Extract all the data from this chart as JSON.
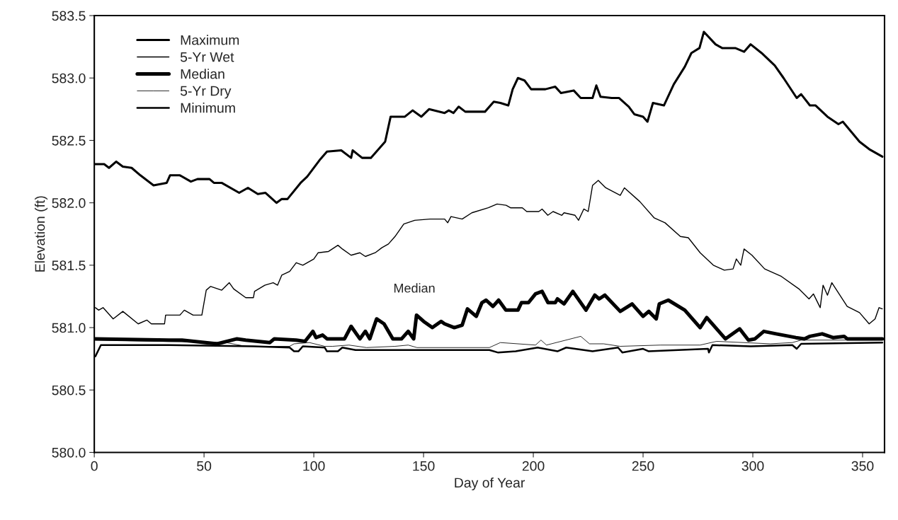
{
  "chart_data": {
    "type": "line",
    "xlabel": "Day of Year",
    "ylabel": "Elevation (ft)",
    "xlim": [
      0,
      360
    ],
    "xticks": [
      0,
      50,
      100,
      150,
      200,
      250,
      300,
      350
    ],
    "ylim": [
      580,
      583.5
    ],
    "yticks": [
      {
        "value": 580,
        "label": "580.0"
      },
      {
        "value": 580.5,
        "label": "580.5"
      },
      {
        "value": 581,
        "label": "581.0"
      },
      {
        "value": 581.5,
        "label": "581.5"
      },
      {
        "value": 582,
        "label": "582.0"
      },
      {
        "value": 582.5,
        "label": "582.5"
      },
      {
        "value": 583,
        "label": "583.0"
      },
      {
        "value": 583.5,
        "label": "583.5"
      }
    ],
    "grid": false,
    "legend": "top left",
    "line_style": "solid",
    "marker": "none",
    "annotations": [
      "Median"
    ],
    "series": [
      {
        "name": "Maximum",
        "color": "#000000",
        "x": [
          0,
          4.5,
          6.7,
          10,
          13,
          17,
          21,
          27,
          30,
          33,
          34.5,
          39,
          44,
          47,
          52.5,
          54.5,
          58,
          66,
          70,
          74.5,
          78,
          83,
          85.4,
          88,
          94,
          97,
          103,
          106,
          112.5,
          117,
          117.7,
          122,
          126,
          132.5,
          135,
          141.5,
          145,
          149,
          152.5,
          159.6,
          161.5,
          163.6,
          166,
          169,
          178,
          182,
          185,
          188.6,
          190.6,
          193,
          196,
          199,
          205.5,
          210,
          212.6,
          218.4,
          221.6,
          227,
          228.7,
          230.6,
          235.7,
          239,
          243.5,
          246,
          250,
          252,
          254.5,
          259.5,
          264,
          269,
          272,
          275.7,
          277.7,
          283,
          286,
          292,
          296,
          299,
          304,
          310,
          314,
          320,
          322,
          326,
          328.6,
          334,
          339,
          341,
          348.6,
          353,
          358,
          359
        ],
        "values": [
          582.31,
          582.31,
          582.28,
          582.33,
          582.29,
          582.28,
          582.22,
          582.14,
          582.15,
          582.16,
          582.22,
          582.22,
          582.17,
          582.19,
          582.19,
          582.16,
          582.16,
          582.08,
          582.12,
          582.07,
          582.08,
          582.0,
          582.03,
          582.03,
          582.16,
          582.21,
          582.35,
          582.41,
          582.42,
          582.36,
          582.42,
          582.36,
          582.36,
          582.49,
          582.69,
          582.69,
          582.74,
          582.69,
          582.75,
          582.72,
          582.74,
          582.72,
          582.77,
          582.73,
          582.73,
          582.81,
          582.8,
          582.78,
          582.91,
          583.0,
          582.98,
          582.91,
          582.91,
          582.93,
          582.88,
          582.9,
          582.84,
          582.84,
          582.94,
          582.85,
          582.84,
          582.84,
          582.77,
          582.71,
          582.69,
          582.65,
          582.8,
          582.78,
          582.95,
          583.09,
          583.2,
          583.24,
          583.37,
          583.27,
          583.24,
          583.24,
          583.21,
          583.27,
          583.2,
          583.1,
          583.0,
          582.84,
          582.87,
          582.78,
          582.78,
          582.69,
          582.63,
          582.65,
          582.49,
          582.43,
          582.38,
          582.37
        ]
      },
      {
        "name": "5-Yr Wet",
        "color": "#000000",
        "x": [
          0.5,
          2,
          4,
          8.6,
          13,
          20,
          24,
          26,
          32,
          32.5,
          39,
          41,
          45,
          49,
          51,
          53,
          58,
          61.5,
          63.5,
          69,
          72.5,
          73,
          77.7,
          81.5,
          83.5,
          85.4,
          89,
          92,
          95,
          100,
          102,
          106.7,
          111,
          113,
          117,
          121,
          123.5,
          128,
          131,
          134,
          137,
          141,
          146,
          153,
          159.6,
          161,
          162.5,
          167.6,
          172,
          179.5,
          183.5,
          187.6,
          189.6,
          195,
          197,
          202.5,
          204,
          206.6,
          209,
          213,
          214,
          219,
          220.6,
          223,
          225,
          227,
          229.6,
          233,
          239.6,
          241.5,
          248.5,
          255,
          260,
          267,
          270.6,
          276,
          282,
          287,
          291,
          292.5,
          294.5,
          296,
          299.6,
          305.4,
          313,
          321,
          325.6,
          327.6,
          330.7,
          332,
          334,
          336,
          343,
          348.6,
          353,
          355.7,
          357.5,
          359
        ],
        "values": [
          581.16,
          581.14,
          581.16,
          581.07,
          581.13,
          581.03,
          581.06,
          581.03,
          581.03,
          581.1,
          581.1,
          581.14,
          581.1,
          581.1,
          581.3,
          581.33,
          581.3,
          581.36,
          581.31,
          581.24,
          581.24,
          581.29,
          581.34,
          581.36,
          581.34,
          581.42,
          581.45,
          581.52,
          581.5,
          581.55,
          581.6,
          581.61,
          581.66,
          581.63,
          581.58,
          581.6,
          581.57,
          581.6,
          581.64,
          581.67,
          581.73,
          581.83,
          581.86,
          581.87,
          581.87,
          581.84,
          581.89,
          581.87,
          581.92,
          581.96,
          581.99,
          581.98,
          581.96,
          581.96,
          581.93,
          581.93,
          581.95,
          581.9,
          581.93,
          581.9,
          581.92,
          581.9,
          581.86,
          581.95,
          581.93,
          582.14,
          582.18,
          582.12,
          582.06,
          582.12,
          582.01,
          581.88,
          581.84,
          581.73,
          581.72,
          581.6,
          581.5,
          581.46,
          581.47,
          581.55,
          581.5,
          581.63,
          581.58,
          581.47,
          581.41,
          581.31,
          581.23,
          581.27,
          581.16,
          581.34,
          581.26,
          581.36,
          581.17,
          581.12,
          581.03,
          581.07,
          581.16,
          581.15
        ]
      },
      {
        "name": "Median",
        "color": "#000000",
        "x": [
          0.5,
          34,
          40,
          56,
          65,
          69,
          80,
          82,
          92,
          96,
          99.6,
          101,
          104,
          106,
          114,
          117,
          121,
          123.5,
          125.5,
          128.6,
          132,
          136,
          140,
          143,
          145.5,
          146.8,
          150,
          154,
          158,
          159.6,
          164,
          167.6,
          170,
          174,
          176.6,
          178.5,
          181.6,
          184.2,
          187.5,
          193,
          194.6,
          197.8,
          201,
          204,
          206.7,
          210,
          211,
          214,
          218,
          224,
          228,
          230,
          232.6,
          239.6,
          245,
          250,
          252.6,
          256,
          257.4,
          261.5,
          269,
          276,
          279,
          287.5,
          294,
          298,
          301,
          305,
          310.6,
          319.6,
          323.5,
          326,
          331.6,
          336.5,
          341.6,
          343,
          359
        ],
        "values": [
          580.91,
          580.9,
          580.9,
          580.87,
          580.91,
          580.9,
          580.88,
          580.91,
          580.9,
          580.89,
          580.97,
          580.92,
          580.94,
          580.91,
          580.91,
          581.01,
          580.91,
          580.97,
          580.91,
          581.07,
          581.03,
          580.91,
          580.91,
          580.97,
          580.91,
          581.1,
          581.05,
          581.0,
          581.05,
          581.03,
          581.0,
          581.02,
          581.15,
          581.09,
          581.2,
          581.22,
          581.17,
          581.22,
          581.14,
          581.14,
          581.2,
          581.2,
          581.27,
          581.29,
          581.2,
          581.2,
          581.23,
          581.19,
          581.29,
          581.14,
          581.26,
          581.23,
          581.26,
          581.13,
          581.19,
          581.09,
          581.13,
          581.07,
          581.19,
          581.22,
          581.14,
          581.0,
          581.08,
          580.91,
          580.99,
          580.9,
          580.91,
          580.97,
          580.95,
          580.92,
          580.91,
          580.93,
          580.95,
          580.92,
          580.93,
          580.91,
          580.91
        ]
      },
      {
        "name": "5-Yr Dry",
        "color": "#000000",
        "x": [
          0.5,
          60,
          69,
          72.5,
          80,
          89,
          91,
          98,
          105,
          108.6,
          116,
          124,
          137,
          143,
          147,
          180,
          185,
          201,
          203.5,
          206,
          221.6,
          225.6,
          232,
          239.6,
          258,
          276,
          283.5,
          308,
          318,
          322,
          359
        ],
        "values": [
          580.9,
          580.88,
          580.85,
          580.85,
          580.85,
          580.85,
          580.87,
          580.88,
          580.85,
          580.85,
          580.86,
          580.84,
          580.85,
          580.86,
          580.84,
          580.84,
          580.88,
          580.86,
          580.9,
          580.86,
          580.93,
          580.87,
          580.87,
          580.85,
          580.86,
          580.86,
          580.89,
          580.87,
          580.88,
          580.9,
          580.9
        ]
      },
      {
        "name": "Minimum",
        "color": "#000000",
        "x": [
          0.5,
          3,
          34,
          72.5,
          89,
          91,
          93,
          95,
          105,
          106,
          111,
          113,
          119,
          124,
          156,
          180,
          184,
          192,
          202,
          211,
          215,
          227,
          238.6,
          240.6,
          250,
          252.6,
          279.6,
          280,
          281.6,
          299,
          318,
          320,
          322,
          359
        ],
        "values": [
          580.77,
          580.86,
          580.86,
          580.85,
          580.84,
          580.81,
          580.81,
          580.85,
          580.84,
          580.81,
          580.81,
          580.84,
          580.82,
          580.82,
          580.82,
          580.82,
          580.8,
          580.81,
          580.84,
          580.81,
          580.84,
          580.81,
          580.84,
          580.8,
          580.83,
          580.81,
          580.83,
          580.8,
          580.86,
          580.85,
          580.86,
          580.83,
          580.87,
          580.88
        ]
      }
    ]
  }
}
